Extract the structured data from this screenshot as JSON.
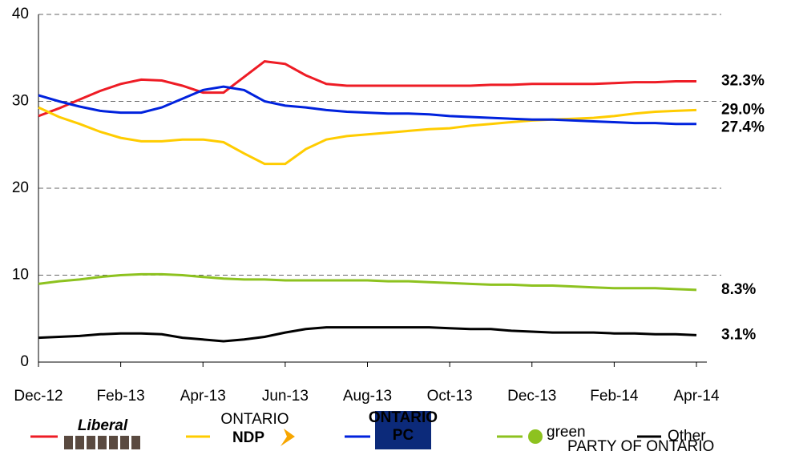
{
  "chart_data": {
    "type": "line",
    "categories": [
      "Dec-12",
      null,
      null,
      null,
      "Feb-13",
      null,
      null,
      null,
      "Apr-13",
      null,
      null,
      null,
      "Jun-13",
      null,
      null,
      null,
      "Aug-13",
      null,
      null,
      null,
      "Oct-13",
      null,
      null,
      null,
      "Dec-13",
      null,
      null,
      null,
      "Feb-14",
      null,
      null,
      null,
      "Apr-14"
    ],
    "ylim": [
      0,
      40
    ],
    "yticks": [
      0,
      10,
      20,
      30,
      40
    ],
    "grid": true,
    "series": [
      {
        "name": "Liberal",
        "color": "#ee1c25",
        "values": [
          28.3,
          29.2,
          30.2,
          31.2,
          32.0,
          32.5,
          32.4,
          31.8,
          31.0,
          31.0,
          32.8,
          34.6,
          34.3,
          33.0,
          32.0,
          31.8,
          31.8,
          31.8,
          31.8,
          31.8,
          31.8,
          31.8,
          31.9,
          31.9,
          32.0,
          32.0,
          32.0,
          32.0,
          32.1,
          32.2,
          32.2,
          32.3,
          32.3
        ],
        "end_label": "32.3%"
      },
      {
        "name": "NDP",
        "color": "#ffcc00",
        "logo_caption": "ONTARIO",
        "values": [
          29.3,
          28.2,
          27.4,
          26.5,
          25.8,
          25.4,
          25.4,
          25.6,
          25.6,
          25.3,
          24.0,
          22.8,
          22.8,
          24.5,
          25.6,
          26.0,
          26.2,
          26.4,
          26.6,
          26.8,
          26.9,
          27.2,
          27.4,
          27.6,
          27.8,
          27.9,
          28.0,
          28.1,
          28.3,
          28.6,
          28.8,
          28.9,
          29.0
        ],
        "end_label": "29.0%"
      },
      {
        "name": "PC",
        "color": "#0022dd",
        "logo_caption": "ONTARIO",
        "values": [
          30.7,
          30.0,
          29.4,
          28.9,
          28.7,
          28.7,
          29.3,
          30.3,
          31.3,
          31.7,
          31.3,
          30.0,
          29.5,
          29.3,
          29.0,
          28.8,
          28.7,
          28.6,
          28.6,
          28.5,
          28.3,
          28.2,
          28.1,
          28.0,
          27.9,
          27.9,
          27.8,
          27.7,
          27.6,
          27.5,
          27.5,
          27.4,
          27.4
        ],
        "end_label": "27.4%"
      },
      {
        "name": "green",
        "color": "#8dc21f",
        "logo_caption": "PARTY OF ONTARIO",
        "values": [
          9.0,
          9.3,
          9.5,
          9.8,
          10.0,
          10.1,
          10.1,
          10.0,
          9.8,
          9.6,
          9.5,
          9.5,
          9.4,
          9.4,
          9.4,
          9.4,
          9.4,
          9.3,
          9.3,
          9.2,
          9.1,
          9.0,
          8.9,
          8.9,
          8.8,
          8.8,
          8.7,
          8.6,
          8.5,
          8.5,
          8.5,
          8.4,
          8.3
        ],
        "end_label": "8.3%"
      },
      {
        "name": "Other",
        "color": "#000000",
        "values": [
          2.8,
          2.9,
          3.0,
          3.2,
          3.3,
          3.3,
          3.2,
          2.8,
          2.6,
          2.4,
          2.6,
          2.9,
          3.4,
          3.8,
          4.0,
          4.0,
          4.0,
          4.0,
          4.0,
          4.0,
          3.9,
          3.8,
          3.8,
          3.6,
          3.5,
          3.4,
          3.4,
          3.4,
          3.3,
          3.3,
          3.2,
          3.2,
          3.1
        ],
        "end_label": "3.1%"
      }
    ]
  }
}
